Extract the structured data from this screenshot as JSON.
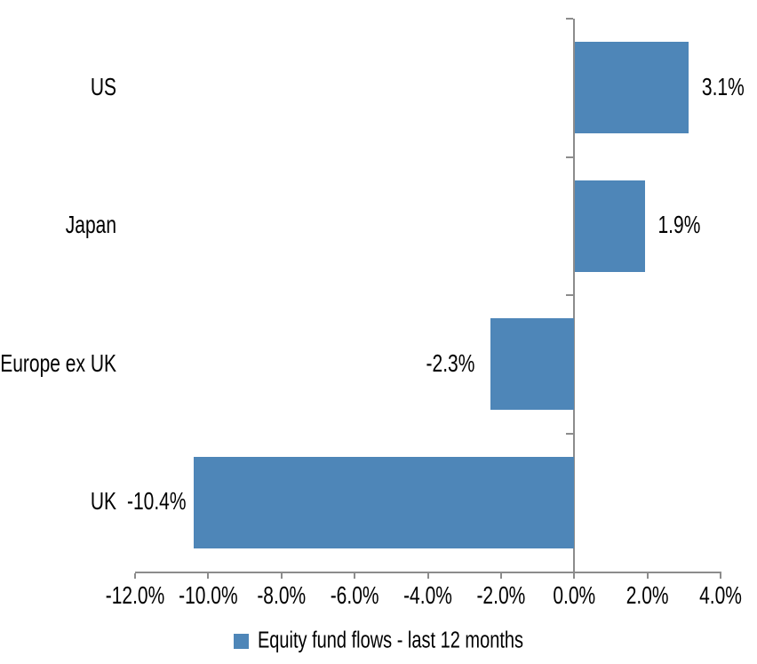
{
  "chart_data": {
    "type": "bar",
    "orientation": "horizontal",
    "title": "",
    "categories": [
      "US",
      "Japan",
      "Europe ex UK",
      "UK"
    ],
    "values": [
      3.1,
      1.9,
      -2.3,
      -10.4
    ],
    "data_labels": [
      "3.1%",
      "1.9%",
      "-2.3%",
      "-10.4%"
    ],
    "series": [
      {
        "name": "Equity fund flows - last 12 months",
        "values": [
          3.1,
          1.9,
          -2.3,
          -10.4
        ]
      }
    ],
    "x_axis": {
      "min": -12,
      "max": 4,
      "step": 2,
      "tick_labels": [
        "-12.0%",
        "-10.0%",
        "-8.0%",
        "-6.0%",
        "-4.0%",
        "-2.0%",
        "0.0%",
        "2.0%",
        "4.0%"
      ]
    },
    "legend": {
      "position": "bottom",
      "label": "Equity fund flows - last 12 months"
    },
    "grid": false,
    "colors": {
      "bar": "#4E86B8",
      "axis": "#8C8C8C",
      "text": "#000000",
      "background": "#FFFFFF"
    }
  }
}
